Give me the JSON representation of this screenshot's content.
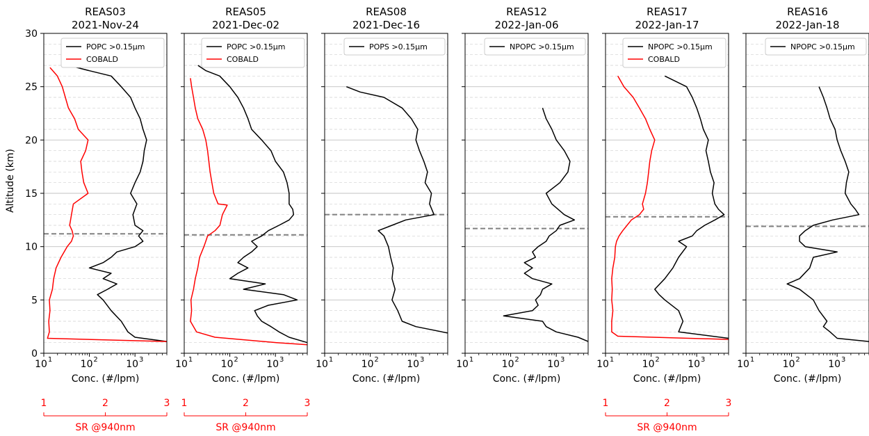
{
  "figure": {
    "y_axis_label": "Altitude (km)",
    "x_axis_label": "Conc. (#/lpm)",
    "sr_axis_label": "SR @940nm",
    "sr_ticks": [
      "1",
      "2",
      "3"
    ],
    "x_tick_labels": [
      "10",
      "10",
      "10"
    ],
    "x_tick_exponents": [
      "1",
      "2",
      "3"
    ],
    "y_tick_labels": [
      "0",
      "5",
      "10",
      "15",
      "20",
      "25",
      "30"
    ]
  },
  "colors": {
    "concentration_line": "#000000",
    "cobald_line": "#ff0000",
    "tropopause_line": "#808080",
    "grid": "#d0d0d0"
  },
  "chart_data": [
    {
      "type": "line",
      "title": [
        "REAS03",
        "2021-Nov-24"
      ],
      "xscale": "log",
      "xlim": [
        10,
        5000
      ],
      "ylim": [
        0,
        30
      ],
      "sr_axis": true,
      "sr_lim": [
        1,
        3
      ],
      "tropopause_km": 11.2,
      "legend": [
        "POPC >0.15µm",
        "COBALD"
      ],
      "series": [
        {
          "name": "POPC >0.15µm",
          "axis": "conc",
          "y": [
            1.1,
            1.5,
            2.0,
            3.0,
            4.0,
            5.0,
            5.5,
            6.0,
            6.5,
            7.0,
            7.5,
            8.0,
            8.5,
            9.0,
            9.5,
            10.0,
            10.5,
            11.0,
            11.5,
            12.0,
            13.0,
            14.0,
            15.0,
            16.0,
            17.0,
            18.0,
            19.0,
            20.0,
            21.0,
            22.0,
            23.0,
            24.0,
            25.0,
            26.0,
            26.5,
            27.0
          ],
          "x": [
            5000,
            1000,
            700,
            500,
            300,
            200,
            150,
            250,
            400,
            200,
            300,
            100,
            200,
            300,
            400,
            1000,
            1500,
            1200,
            1500,
            1000,
            900,
            1100,
            800,
            1000,
            1300,
            1500,
            1600,
            1800,
            1500,
            1300,
            1000,
            800,
            500,
            300,
            100,
            35
          ]
        },
        {
          "name": "COBALD",
          "axis": "sr",
          "y": [
            1.1,
            1.4,
            2.0,
            3.0,
            4.0,
            5.0,
            6.0,
            7.0,
            8.0,
            9.0,
            10.0,
            10.5,
            11.0,
            11.5,
            12.0,
            13.0,
            14.0,
            15.0,
            16.0,
            17.0,
            18.0,
            19.0,
            20.0,
            21.0,
            22.0,
            23.0,
            24.0,
            25.0,
            26.0,
            26.8
          ],
          "x": [
            3.0,
            1.06,
            1.09,
            1.08,
            1.1,
            1.09,
            1.14,
            1.16,
            1.2,
            1.28,
            1.38,
            1.45,
            1.48,
            1.46,
            1.42,
            1.45,
            1.48,
            1.72,
            1.65,
            1.62,
            1.6,
            1.68,
            1.72,
            1.56,
            1.5,
            1.4,
            1.35,
            1.3,
            1.22,
            1.1
          ]
        }
      ]
    },
    {
      "type": "line",
      "title": [
        "REAS05",
        "2021-Dec-02"
      ],
      "xscale": "log",
      "xlim": [
        10,
        5000
      ],
      "ylim": [
        0,
        30
      ],
      "sr_axis": true,
      "sr_lim": [
        1,
        3
      ],
      "tropopause_km": 11.1,
      "legend": [
        "POPC >0.15µm",
        "COBALD"
      ],
      "series": [
        {
          "name": "POPC >0.15µm",
          "axis": "conc",
          "y": [
            1.0,
            1.5,
            2.0,
            2.5,
            3.0,
            3.5,
            4.0,
            4.5,
            5.0,
            5.5,
            6.0,
            6.5,
            7.0,
            7.5,
            8.0,
            8.5,
            9.0,
            9.5,
            10.0,
            10.5,
            11.0,
            11.5,
            12.0,
            12.5,
            13.0,
            13.5,
            14.0,
            15.0,
            16.0,
            17.0,
            18.0,
            19.0,
            20.0,
            21.0,
            22.0,
            23.0,
            24.0,
            25.0,
            26.0,
            26.5,
            27.0
          ],
          "x": [
            5000,
            2000,
            1200,
            800,
            500,
            400,
            350,
            700,
            3000,
            1500,
            200,
            600,
            100,
            150,
            250,
            150,
            200,
            300,
            400,
            300,
            500,
            700,
            1200,
            2000,
            2500,
            2400,
            2000,
            2000,
            1800,
            1500,
            1000,
            800,
            500,
            300,
            250,
            200,
            150,
            100,
            60,
            30,
            20
          ]
        },
        {
          "name": "COBALD",
          "axis": "sr",
          "y": [
            0.8,
            1.0,
            1.5,
            2.0,
            3.0,
            4.0,
            5.0,
            6.0,
            7.0,
            8.0,
            9.0,
            10.0,
            10.5,
            11.0,
            11.5,
            12.0,
            13.0,
            13.9,
            14.0,
            15.0,
            16.0,
            17.0,
            18.0,
            19.0,
            20.0,
            21.0,
            22.0,
            23.0,
            24.0,
            25.0,
            25.8
          ],
          "x": [
            3.0,
            2.5,
            1.5,
            1.2,
            1.1,
            1.12,
            1.11,
            1.15,
            1.18,
            1.22,
            1.25,
            1.32,
            1.35,
            1.38,
            1.5,
            1.58,
            1.62,
            1.7,
            1.55,
            1.48,
            1.45,
            1.42,
            1.4,
            1.38,
            1.35,
            1.3,
            1.22,
            1.18,
            1.15,
            1.12,
            1.1
          ]
        }
      ]
    },
    {
      "type": "line",
      "title": [
        "REAS08",
        "2021-Dec-16"
      ],
      "xscale": "log",
      "xlim": [
        10,
        5000
      ],
      "ylim": [
        0,
        30
      ],
      "sr_axis": false,
      "tropopause_km": 13.0,
      "legend": [
        "POPS >0.15µm"
      ],
      "series": [
        {
          "name": "POPS >0.15µm",
          "axis": "conc",
          "y": [
            1.9,
            2.5,
            3.0,
            4.0,
            5.0,
            6.0,
            7.0,
            8.0,
            9.0,
            10.0,
            11.0,
            11.5,
            12.0,
            12.5,
            13.0,
            14.0,
            15.0,
            16.0,
            17.0,
            18.0,
            19.0,
            20.0,
            21.0,
            22.0,
            23.0,
            24.0,
            24.5,
            25.0
          ],
          "x": [
            5000,
            1000,
            500,
            400,
            300,
            350,
            300,
            320,
            280,
            250,
            200,
            150,
            300,
            600,
            2500,
            2000,
            2200,
            1600,
            1800,
            1500,
            1200,
            1000,
            1100,
            800,
            500,
            200,
            60,
            30
          ]
        }
      ]
    },
    {
      "type": "line",
      "title": [
        "REAS12",
        "2022-Jan-06"
      ],
      "xscale": "log",
      "xlim": [
        10,
        5000
      ],
      "ylim": [
        0,
        30
      ],
      "sr_axis": false,
      "tropopause_km": 11.7,
      "legend": [
        "NPOPC >0.15µm"
      ],
      "series": [
        {
          "name": "NPOPC >0.15µm",
          "axis": "conc",
          "y": [
            1.1,
            1.5,
            2.0,
            2.5,
            3.0,
            3.5,
            4.0,
            4.5,
            5.0,
            5.5,
            6.0,
            6.5,
            7.0,
            7.5,
            8.0,
            8.5,
            9.0,
            9.5,
            10.0,
            10.5,
            11.0,
            11.5,
            12.0,
            12.5,
            13.0,
            14.0,
            15.0,
            16.0,
            17.0,
            18.0,
            19.0,
            20.0,
            21.0,
            22.0,
            23.0
          ],
          "x": [
            5000,
            3000,
            1000,
            600,
            500,
            70,
            300,
            400,
            350,
            450,
            500,
            800,
            300,
            200,
            300,
            200,
            350,
            300,
            400,
            600,
            700,
            1000,
            1200,
            2500,
            1500,
            800,
            600,
            1200,
            1800,
            2000,
            1500,
            1000,
            800,
            600,
            500
          ]
        }
      ]
    },
    {
      "type": "line",
      "title": [
        "REAS17",
        "2022-Jan-17"
      ],
      "xscale": "log",
      "xlim": [
        10,
        5000
      ],
      "ylim": [
        0,
        30
      ],
      "sr_axis": true,
      "sr_lim": [
        1,
        3
      ],
      "tropopause_km": 12.8,
      "legend": [
        "NPOPC >0.15µm",
        "COBALD"
      ],
      "series": [
        {
          "name": "NPOPC >0.15µm",
          "axis": "conc",
          "y": [
            1.4,
            2.0,
            3.0,
            4.0,
            5.0,
            5.5,
            6.0,
            7.0,
            8.0,
            9.0,
            10.0,
            10.5,
            11.0,
            11.5,
            12.0,
            12.5,
            13.0,
            13.5,
            14.0,
            15.0,
            16.0,
            17.0,
            18.0,
            19.0,
            20.0,
            21.0,
            22.0,
            23.0,
            24.0,
            25.0,
            26.0
          ],
          "x": [
            5000,
            400,
            500,
            400,
            200,
            150,
            120,
            200,
            300,
            400,
            600,
            400,
            800,
            1000,
            1500,
            2500,
            4000,
            3000,
            2500,
            2200,
            2400,
            2000,
            1800,
            1600,
            1800,
            1400,
            1200,
            1000,
            800,
            600,
            200
          ]
        },
        {
          "name": "COBALD",
          "axis": "sr",
          "y": [
            1.3,
            1.6,
            2.0,
            3.0,
            4.0,
            5.0,
            6.0,
            7.0,
            8.0,
            9.0,
            10.0,
            10.5,
            11.0,
            11.5,
            12.0,
            12.5,
            13.0,
            13.5,
            14.0,
            15.0,
            16.0,
            17.0,
            18.0,
            19.0,
            20.0,
            21.0,
            22.0,
            23.0,
            24.0,
            25.0,
            26.0
          ],
          "x": [
            3.0,
            1.2,
            1.1,
            1.1,
            1.12,
            1.1,
            1.11,
            1.1,
            1.12,
            1.15,
            1.16,
            1.18,
            1.22,
            1.28,
            1.35,
            1.42,
            1.55,
            1.62,
            1.6,
            1.65,
            1.68,
            1.7,
            1.72,
            1.75,
            1.8,
            1.72,
            1.65,
            1.55,
            1.45,
            1.3,
            1.2
          ]
        }
      ]
    },
    {
      "type": "line",
      "title": [
        "REAS16",
        "2022-Jan-18"
      ],
      "xscale": "log",
      "xlim": [
        10,
        5000
      ],
      "ylim": [
        0,
        30
      ],
      "sr_axis": false,
      "tropopause_km": 11.9,
      "legend": [
        "NPOPC >0.15µm"
      ],
      "series": [
        {
          "name": "NPOPC >0.15µm",
          "axis": "conc",
          "y": [
            1.1,
            1.4,
            2.0,
            2.5,
            3.0,
            4.0,
            5.0,
            6.0,
            6.5,
            7.0,
            8.0,
            9.0,
            9.5,
            10.0,
            10.5,
            11.0,
            11.5,
            12.0,
            12.5,
            13.0,
            13.5,
            14.0,
            15.0,
            16.0,
            17.0,
            18.0,
            19.0,
            20.0,
            21.0,
            22.0,
            23.0,
            24.0,
            25.0
          ],
          "x": [
            5000,
            1000,
            700,
            500,
            600,
            400,
            300,
            150,
            80,
            150,
            250,
            300,
            1000,
            200,
            150,
            150,
            200,
            300,
            800,
            3000,
            2500,
            2000,
            1500,
            1600,
            1800,
            1500,
            1200,
            1000,
            900,
            700,
            600,
            500,
            400
          ]
        }
      ]
    }
  ]
}
